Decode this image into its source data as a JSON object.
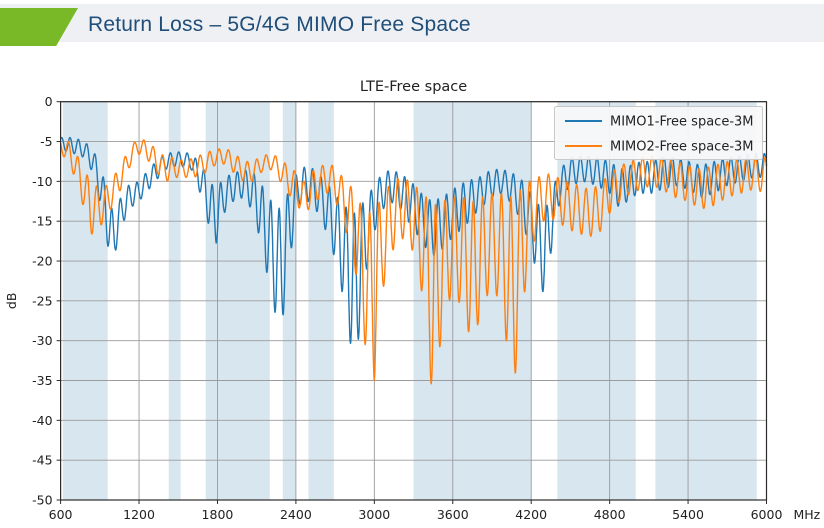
{
  "header": {
    "title": "Return Loss – 5G/4G MIMO Free Space"
  },
  "chart_data": {
    "type": "line",
    "title": "LTE-Free space",
    "ylabel": "dB",
    "x_unit": "MHz",
    "xlim": [
      600,
      6000
    ],
    "ylim": [
      -50,
      0
    ],
    "grid": true,
    "legend_position": "upper right",
    "x_ticks": [
      600,
      1200,
      1800,
      2400,
      3000,
      3600,
      4200,
      4800,
      5400,
      6000
    ],
    "x_tick_labels": [
      "600",
      "1200",
      "1800",
      "2400",
      "3000",
      "3600",
      "4200",
      "4800",
      "5400",
      "6000"
    ],
    "y_ticks": [
      0,
      -5,
      -10,
      -15,
      -20,
      -25,
      -30,
      -35,
      -40,
      -45,
      -50
    ],
    "y_tick_labels": [
      "0",
      "-5",
      "-10",
      "-15",
      "-20",
      "-25",
      "-30",
      "-35",
      "-40",
      "-45",
      "-50"
    ],
    "colors": {
      "band": "#d7e6ef",
      "grid": "#9b9b9b",
      "frame": "#2b2b2b",
      "text": "#222222",
      "legend_bg": "#f8f9fa",
      "legend_edge": "#c8c8c8",
      "mimo1": "#1f77b4",
      "mimo2": "#ff7f0e"
    },
    "shaded_bands": [
      {
        "from": 617,
        "to": 960
      },
      {
        "from": 1427,
        "to": 1518
      },
      {
        "from": 1710,
        "to": 2200
      },
      {
        "from": 2300,
        "to": 2400
      },
      {
        "from": 2496,
        "to": 2690
      },
      {
        "from": 3300,
        "to": 4200
      },
      {
        "from": 4400,
        "to": 5000
      },
      {
        "from": 5150,
        "to": 5925
      }
    ],
    "series_note": "Measured ripply traces; each series stored as envelope control points [freq_MHz, top_dB, bottom_dB]; trace oscillates between envelopes with the given ripple period.",
    "series": [
      {
        "name": "MIMO1-Free space-3M",
        "color": "#1f77b4",
        "ripple_period_mhz": 64,
        "ripple_phase": 0.8,
        "envelope": [
          [
            600,
            -4.5,
            -6
          ],
          [
            700,
            -4.5,
            -6.5
          ],
          [
            780,
            -5,
            -7
          ],
          [
            850,
            -6,
            -9
          ],
          [
            920,
            -9,
            -14
          ],
          [
            980,
            -13,
            -20
          ],
          [
            1010,
            -14,
            -19.5
          ],
          [
            1060,
            -12,
            -16
          ],
          [
            1120,
            -10.5,
            -13.5
          ],
          [
            1200,
            -10,
            -12.5
          ],
          [
            1300,
            -8,
            -10.5
          ],
          [
            1400,
            -6.5,
            -8.5
          ],
          [
            1500,
            -6.3,
            -8
          ],
          [
            1600,
            -6.5,
            -8.5
          ],
          [
            1680,
            -8,
            -12
          ],
          [
            1740,
            -10,
            -16
          ],
          [
            1790,
            -11,
            -17.8
          ],
          [
            1850,
            -9.5,
            -14
          ],
          [
            1920,
            -9,
            -12.5
          ],
          [
            2000,
            -8.5,
            -12
          ],
          [
            2080,
            -9,
            -14
          ],
          [
            2160,
            -11,
            -20
          ],
          [
            2230,
            -13,
            -26
          ],
          [
            2290,
            -13.5,
            -28.6
          ],
          [
            2350,
            -11,
            -20
          ],
          [
            2420,
            -8.5,
            -13
          ],
          [
            2500,
            -8,
            -12.5
          ],
          [
            2570,
            -9,
            -14
          ],
          [
            2650,
            -10.5,
            -17
          ],
          [
            2720,
            -12,
            -21
          ],
          [
            2800,
            -13.5,
            -28
          ],
          [
            2850,
            -14,
            -35
          ],
          [
            2900,
            -13,
            -26
          ],
          [
            2960,
            -11.5,
            -19
          ],
          [
            3040,
            -9.5,
            -14
          ],
          [
            3120,
            -8.5,
            -12.5
          ],
          [
            3200,
            -9,
            -13.5
          ],
          [
            3280,
            -10,
            -15.5
          ],
          [
            3360,
            -11.5,
            -17.5
          ],
          [
            3440,
            -12.5,
            -19.5
          ],
          [
            3520,
            -12,
            -18.5
          ],
          [
            3600,
            -11,
            -17
          ],
          [
            3700,
            -10,
            -15.5
          ],
          [
            3800,
            -9.5,
            -13.5
          ],
          [
            3900,
            -8.5,
            -12
          ],
          [
            3980,
            -8.5,
            -11.5
          ],
          [
            4060,
            -9,
            -13
          ],
          [
            4140,
            -10,
            -15.5
          ],
          [
            4220,
            -12,
            -20
          ],
          [
            4300,
            -14,
            -24.5
          ],
          [
            4360,
            -11,
            -18
          ],
          [
            4420,
            -8.5,
            -12.5
          ],
          [
            4500,
            -7,
            -10.5
          ],
          [
            4600,
            -6.8,
            -10
          ],
          [
            4700,
            -7,
            -10.5
          ],
          [
            4800,
            -7.5,
            -11.5
          ],
          [
            4880,
            -8.5,
            -13.5
          ],
          [
            4960,
            -8,
            -12
          ],
          [
            5040,
            -7.5,
            -11.5
          ],
          [
            5120,
            -7.5,
            -11.5
          ],
          [
            5200,
            -7,
            -11
          ],
          [
            5300,
            -7,
            -10.5
          ],
          [
            5400,
            -7.5,
            -11
          ],
          [
            5500,
            -8,
            -12
          ],
          [
            5600,
            -7.5,
            -11.5
          ],
          [
            5700,
            -7,
            -10.5
          ],
          [
            5800,
            -6.8,
            -10
          ],
          [
            5900,
            -6.5,
            -9.5
          ],
          [
            6000,
            -6.5,
            -9.5
          ]
        ]
      },
      {
        "name": "MIMO2-Free space-3M",
        "color": "#ff7f0e",
        "ripple_period_mhz": 72,
        "ripple_phase": 2.6,
        "envelope": [
          [
            600,
            -4.8,
            -6.5
          ],
          [
            660,
            -5,
            -7.5
          ],
          [
            720,
            -6.5,
            -10
          ],
          [
            780,
            -8.5,
            -13.5
          ],
          [
            830,
            -10,
            -16.8
          ],
          [
            870,
            -10.5,
            -16
          ],
          [
            910,
            -11,
            -15.5
          ],
          [
            950,
            -10.5,
            -14.5
          ],
          [
            1000,
            -9.5,
            -13
          ],
          [
            1060,
            -8,
            -11
          ],
          [
            1120,
            -6,
            -8.5
          ],
          [
            1180,
            -4.8,
            -6.5
          ],
          [
            1240,
            -4.8,
            -6.8
          ],
          [
            1300,
            -5.5,
            -8
          ],
          [
            1360,
            -6.5,
            -9.5
          ],
          [
            1420,
            -7,
            -10
          ],
          [
            1480,
            -7,
            -9.5
          ],
          [
            1550,
            -7.5,
            -9.5
          ],
          [
            1620,
            -7,
            -9.5
          ],
          [
            1700,
            -6.5,
            -9
          ],
          [
            1780,
            -6,
            -8
          ],
          [
            1860,
            -5.8,
            -7.8
          ],
          [
            1930,
            -6.5,
            -9
          ],
          [
            2000,
            -7.5,
            -10
          ],
          [
            2070,
            -7.5,
            -10
          ],
          [
            2140,
            -6.8,
            -8.8
          ],
          [
            2220,
            -6.5,
            -8.5
          ],
          [
            2300,
            -7.5,
            -10.5
          ],
          [
            2380,
            -8.5,
            -12.5
          ],
          [
            2460,
            -10,
            -14
          ],
          [
            2540,
            -8.5,
            -13
          ],
          [
            2600,
            -8,
            -11.5
          ],
          [
            2680,
            -8,
            -11.5
          ],
          [
            2760,
            -9.5,
            -15
          ],
          [
            2840,
            -11,
            -19.5
          ],
          [
            2900,
            -13,
            -27
          ],
          [
            2950,
            -14,
            -33
          ],
          [
            3000,
            -13.5,
            -35
          ],
          [
            3060,
            -12,
            -24
          ],
          [
            3130,
            -10,
            -19
          ],
          [
            3200,
            -9.5,
            -17
          ],
          [
            3280,
            -10,
            -18
          ],
          [
            3340,
            -11,
            -22
          ],
          [
            3400,
            -12,
            -27
          ],
          [
            3456,
            -13,
            -41
          ],
          [
            3520,
            -12.5,
            -27
          ],
          [
            3600,
            -12,
            -24
          ],
          [
            3680,
            -12,
            -26
          ],
          [
            3750,
            -12.5,
            -31
          ],
          [
            3820,
            -12,
            -26
          ],
          [
            3900,
            -11.5,
            -23
          ],
          [
            3980,
            -11.5,
            -26
          ],
          [
            4060,
            -12,
            -37
          ],
          [
            4120,
            -11,
            -28
          ],
          [
            4180,
            -10,
            -20
          ],
          [
            4250,
            -9.5,
            -16
          ],
          [
            4320,
            -9,
            -14.5
          ],
          [
            4400,
            -9.5,
            -15
          ],
          [
            4480,
            -10,
            -16
          ],
          [
            4560,
            -10.5,
            -16.5
          ],
          [
            4640,
            -11,
            -17
          ],
          [
            4720,
            -10.5,
            -16.5
          ],
          [
            4800,
            -9,
            -14
          ],
          [
            4880,
            -8,
            -12.5
          ],
          [
            4960,
            -7.5,
            -11.5
          ],
          [
            5040,
            -7,
            -11
          ],
          [
            5120,
            -6.8,
            -10.5
          ],
          [
            5200,
            -7,
            -11
          ],
          [
            5300,
            -7.5,
            -12
          ],
          [
            5400,
            -8,
            -12.5
          ],
          [
            5500,
            -8.5,
            -13.5
          ],
          [
            5600,
            -8,
            -13
          ],
          [
            5700,
            -7.5,
            -12
          ],
          [
            5800,
            -7.2,
            -11.5
          ],
          [
            5900,
            -7,
            -11
          ],
          [
            6000,
            -7,
            -11.5
          ]
        ]
      }
    ]
  }
}
